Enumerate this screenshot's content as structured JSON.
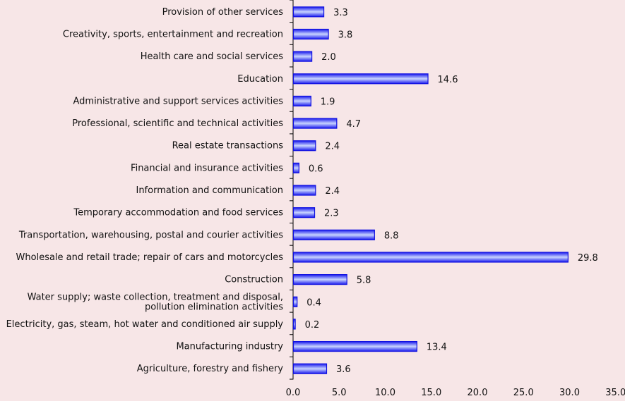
{
  "chart_data": {
    "type": "bar",
    "orientation": "horizontal",
    "title": "",
    "xlabel": "",
    "ylabel": "",
    "xlim": [
      0,
      35
    ],
    "x_ticks": [
      "0.0",
      "5.0",
      "10.0",
      "15.0",
      "20.0",
      "25.0",
      "30.0",
      "35.0"
    ],
    "grid": false,
    "bar_color": "#1a1aff",
    "background": "#f7e6e7",
    "categories": [
      "Provision of other services",
      "Creativity, sports, entertainment and recreation",
      "Health care and social services",
      "Education",
      "Administrative and support services activities",
      "Professional, scientific and technical activities",
      "Real estate transactions",
      "Financial and insurance activities",
      "Information and communication",
      "Temporary accommodation and food services",
      "Transportation, warehousing, postal and courier activities",
      "Wholesale and retail trade; repair of cars and motorcycles",
      "Construction",
      "Water supply; waste collection, treatment and disposal,|pollution elimination activities",
      "Electricity, gas, steam, hot water and conditioned air supply",
      "Manufacturing industry",
      "Agriculture, forestry and fishery"
    ],
    "values": [
      3.3,
      3.8,
      2.0,
      14.6,
      1.9,
      4.7,
      2.4,
      0.6,
      2.4,
      2.3,
      8.8,
      29.8,
      5.8,
      0.4,
      0.2,
      13.4,
      3.6
    ],
    "data_labels": [
      "3.3",
      "3.8",
      "2.0",
      "14.6",
      "1.9",
      "4.7",
      "2.4",
      "0.6",
      "2.4",
      "2.3",
      "8.8",
      "29.8",
      "5.8",
      "0.4",
      "0.2",
      "13.4",
      "3.6"
    ]
  }
}
